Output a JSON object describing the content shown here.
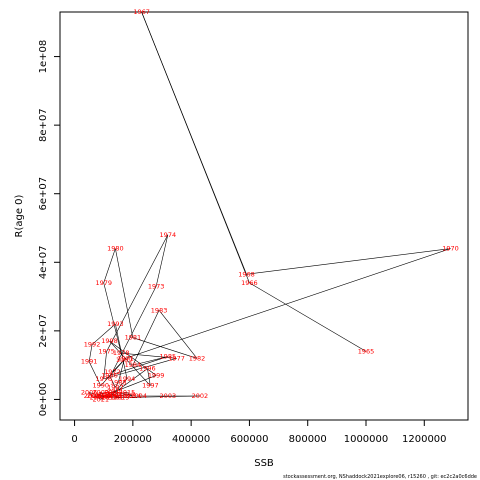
{
  "chart_data": {
    "type": "scatter",
    "xlabel": "SSB",
    "ylabel": "R(age 0)",
    "xlim": [
      -50000,
      1350000
    ],
    "ylim": [
      -6000000,
      113000000
    ],
    "x_ticks": [
      0,
      200000,
      400000,
      600000,
      800000,
      1000000,
      1200000
    ],
    "x_tick_labels": [
      "0",
      "200000",
      "400000",
      "600000",
      "800000",
      "1000000",
      "1200000"
    ],
    "y_ticks": [
      0,
      20000000,
      40000000,
      60000000,
      80000000,
      100000000
    ],
    "y_tick_labels": [
      "0e+00",
      "2e+07",
      "4e+07",
      "6e+07",
      "8e+07",
      "1e+08"
    ],
    "series": [
      {
        "points": [
          {
            "year": "1965",
            "x": 1000000,
            "y": 14000000
          },
          {
            "year": "1966",
            "x": 600000,
            "y": 34000000
          },
          {
            "year": "1967",
            "x": 230000,
            "y": 113000000
          },
          {
            "year": "1968",
            "x": 590000,
            "y": 36500000
          },
          {
            "year": "1970",
            "x": 1290000,
            "y": 44000000
          },
          {
            "year": "1971",
            "x": 175000,
            "y": 12000000
          },
          {
            "year": "1972",
            "x": 130000,
            "y": 8000000
          },
          {
            "year": "1973",
            "x": 280000,
            "y": 33000000
          },
          {
            "year": "1974",
            "x": 320000,
            "y": 48000000
          },
          {
            "year": "1975",
            "x": 110000,
            "y": 14000000
          },
          {
            "year": "1976",
            "x": 100000,
            "y": 6000000
          },
          {
            "year": "1977",
            "x": 350000,
            "y": 12000000
          },
          {
            "year": "1978",
            "x": 160000,
            "y": 13500000
          },
          {
            "year": "1979",
            "x": 100000,
            "y": 34000000
          },
          {
            "year": "1980",
            "x": 140000,
            "y": 44000000
          },
          {
            "year": "1981",
            "x": 200000,
            "y": 18000000
          },
          {
            "year": "1982",
            "x": 420000,
            "y": 12000000
          },
          {
            "year": "1983",
            "x": 290000,
            "y": 26000000
          },
          {
            "year": "1984",
            "x": 200000,
            "y": 10000000
          },
          {
            "year": "1985",
            "x": 320000,
            "y": 12500000
          },
          {
            "year": "1986",
            "x": 120000,
            "y": 7000000
          },
          {
            "year": "1987",
            "x": 140000,
            "y": 3500000
          },
          {
            "year": "1988",
            "x": 150000,
            "y": 5000000
          },
          {
            "year": "1989",
            "x": 170000,
            "y": 11500000
          },
          {
            "year": "1990",
            "x": 90000,
            "y": 4000000
          },
          {
            "year": "1991",
            "x": 50000,
            "y": 11000000
          },
          {
            "year": "1992",
            "x": 60000,
            "y": 16000000
          },
          {
            "year": "1993",
            "x": 140000,
            "y": 22000000
          },
          {
            "year": "1994",
            "x": 180000,
            "y": 6000000
          },
          {
            "year": "1995",
            "x": 130000,
            "y": 1500000
          },
          {
            "year": "1996",
            "x": 250000,
            "y": 9000000
          },
          {
            "year": "1997",
            "x": 260000,
            "y": 4000000
          },
          {
            "year": "1998",
            "x": 120000,
            "y": 17000000
          },
          {
            "year": "1999",
            "x": 280000,
            "y": 7000000
          },
          {
            "year": "2000",
            "x": 130000,
            "y": 2000000
          },
          {
            "year": "2001",
            "x": 140000,
            "y": 500000
          },
          {
            "year": "2002",
            "x": 430000,
            "y": 1000000
          },
          {
            "year": "2003",
            "x": 320000,
            "y": 1000000
          },
          {
            "year": "2004",
            "x": 220000,
            "y": 1000000
          },
          {
            "year": "2005",
            "x": 60000,
            "y": 1000000
          },
          {
            "year": "2006",
            "x": 50000,
            "y": 2000000
          },
          {
            "year": "2007",
            "x": 100000,
            "y": 1000000
          },
          {
            "year": "2008",
            "x": 80000,
            "y": 500000
          },
          {
            "year": "2009",
            "x": 90000,
            "y": 2000000
          },
          {
            "year": "2010",
            "x": 110000,
            "y": 1500000
          },
          {
            "year": "2011",
            "x": 140000,
            "y": 2500000
          },
          {
            "year": "2012",
            "x": 150000,
            "y": 1000000
          },
          {
            "year": "2013",
            "x": 180000,
            "y": 1500000
          },
          {
            "year": "2014",
            "x": 200000,
            "y": 1000000
          },
          {
            "year": "2015",
            "x": 180000,
            "y": 2000000
          },
          {
            "year": "2016",
            "x": 100000,
            "y": 1000000
          },
          {
            "year": "2017",
            "x": 120000,
            "y": 500000
          },
          {
            "year": "2018",
            "x": 90000,
            "y": 1000000
          },
          {
            "year": "2019",
            "x": 160000,
            "y": 500000
          },
          {
            "year": "2020",
            "x": 110000,
            "y": 1500000
          },
          {
            "year": "2021",
            "x": 90000,
            "y": 0
          },
          {
            "year": "2022",
            "x": 70000,
            "y": 1000000
          }
        ]
      }
    ],
    "line_color": "#000000",
    "label_color": "#ff0000"
  },
  "footer": "stockassessment.org, NShaddock2021explore06, r15260 , git: ec2c2a0c6dde"
}
